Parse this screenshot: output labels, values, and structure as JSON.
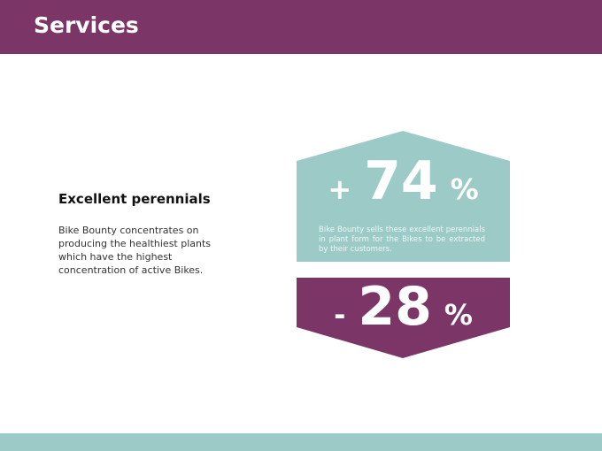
{
  "header": {
    "title": "Services"
  },
  "left": {
    "heading": "Excellent perennials",
    "body": "Bike Bounty concentrates on producing the healthiest plants which have the highest concentration of active Bikes."
  },
  "stats": [
    {
      "sign": "+",
      "value": 74,
      "unit": "%",
      "text": "Bike Bounty sells these excellent perennials in plant form for the Bikes to be extracted by their customers."
    },
    {
      "sign": "-",
      "value": 28,
      "unit": "%"
    }
  ]
}
